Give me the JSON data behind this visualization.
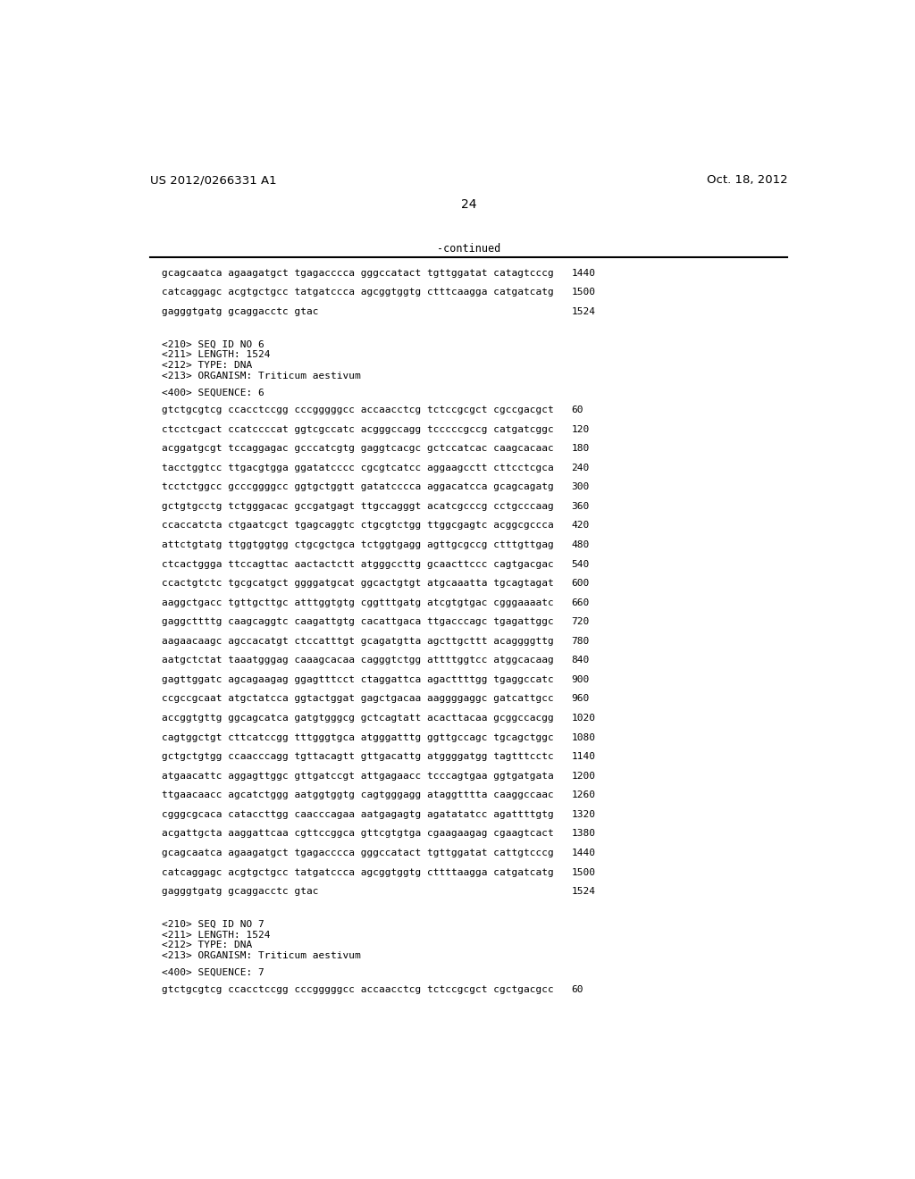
{
  "header_left": "US 2012/0266331 A1",
  "header_right": "Oct. 18, 2012",
  "page_number": "24",
  "continued_label": "-continued",
  "top_lines": [
    {
      "seq": "gcagcaatca agaagatgct tgagacccca gggccatact tgttggatat catagtcccg",
      "num": "1440"
    },
    {
      "seq": "catcaggagc acgtgctgcc tatgatccca agcggtggtg ctttcaagga catgatcatg",
      "num": "1500"
    },
    {
      "seq": "gagggtgatg gcaggacctc gtac",
      "num": "1524"
    }
  ],
  "meta_block_1": [
    "<210> SEQ ID NO 6",
    "<211> LENGTH: 1524",
    "<212> TYPE: DNA",
    "<213> ORGANISM: Triticum aestivum"
  ],
  "seq_label_1": "<400> SEQUENCE: 6",
  "seq_lines_1": [
    {
      "seq": "gtctgcgtcg ccacctccgg cccgggggcc accaacctcg tctccgcgct cgccgacgct",
      "num": "60"
    },
    {
      "seq": "ctcctcgact ccatccccat ggtcgccatc acgggccagg tcccccgccg catgatcggc",
      "num": "120"
    },
    {
      "seq": "acggatgcgt tccaggagac gcccatcgtg gaggtcacgc gctccatcac caagcacaac",
      "num": "180"
    },
    {
      "seq": "tacctggtcc ttgacgtgga ggatatcccc cgcgtcatcc aggaagcctt cttcctcgca",
      "num": "240"
    },
    {
      "seq": "tcctctggcc gcccggggcc ggtgctggtt gatatcccca aggacatcca gcagcagatg",
      "num": "300"
    },
    {
      "seq": "gctgtgcctg tctgggacac gccgatgagt ttgccagggt acatcgcccg cctgcccaag",
      "num": "360"
    },
    {
      "seq": "ccaccatcta ctgaatcgct tgagcaggtc ctgcgtctgg ttggcgagtc acggcgccca",
      "num": "420"
    },
    {
      "seq": "attctgtatg ttggtggtgg ctgcgctgca tctggtgagg agttgcgccg ctttgttgag",
      "num": "480"
    },
    {
      "seq": "ctcactggga ttccagttac aactactctt atgggccttg gcaacttccc cagtgacgac",
      "num": "540"
    },
    {
      "seq": "ccactgtctc tgcgcatgct ggggatgcat ggcactgtgt atgcaaatta tgcagtagat",
      "num": "600"
    },
    {
      "seq": "aaggctgacc tgttgcttgc atttggtgtg cggtttgatg atcgtgtgac cgggaaaatc",
      "num": "660"
    },
    {
      "seq": "gaggcttttg caagcaggtc caagattgtg cacattgaca ttgacccagc tgagattggc",
      "num": "720"
    },
    {
      "seq": "aagaacaagc agccacatgt ctccatttgt gcagatgtta agcttgcttt acaggggttg",
      "num": "780"
    },
    {
      "seq": "aatgctctat taaatgggag caaagcacaa cagggtctgg attttggtcc atggcacaag",
      "num": "840"
    },
    {
      "seq": "gagttggatc agcagaagag ggagtttcct ctaggattca agacttttgg tgaggccatc",
      "num": "900"
    },
    {
      "seq": "ccgccgcaat atgctatcca ggtactggat gagctgacaa aaggggaggc gatcattgcc",
      "num": "960"
    },
    {
      "seq": "accggtgttg ggcagcatca gatgtgggcg gctcagtatt acacttacaa gcggccacgg",
      "num": "1020"
    },
    {
      "seq": "cagtggctgt cttcatccgg tttgggtgca atgggatttg ggttgccagc tgcagctggc",
      "num": "1080"
    },
    {
      "seq": "gctgctgtgg ccaacccagg tgttacagtt gttgacattg atggggatgg tagtttcctc",
      "num": "1140"
    },
    {
      "seq": "atgaacattc aggagttggc gttgatccgt attgagaacc tcccagtgaa ggtgatgata",
      "num": "1200"
    },
    {
      "seq": "ttgaacaacc agcatctggg aatggtggtg cagtgggagg ataggtttta caaggccaac",
      "num": "1260"
    },
    {
      "seq": "cgggcgcaca cataccttgg caacccagaa aatgagagtg agatatatcc agattttgtg",
      "num": "1320"
    },
    {
      "seq": "acgattgcta aaggattcaa cgttccggca gttcgtgtga cgaagaagag cgaagtcact",
      "num": "1380"
    },
    {
      "seq": "gcagcaatca agaagatgct tgagacccca gggccatact tgttggatat cattgtcccg",
      "num": "1440"
    },
    {
      "seq": "catcaggagc acgtgctgcc tatgatccca agcggtggtg cttttaagga catgatcatg",
      "num": "1500"
    },
    {
      "seq": "gagggtgatg gcaggacctc gtac",
      "num": "1524"
    }
  ],
  "meta_block_2": [
    "<210> SEQ ID NO 7",
    "<211> LENGTH: 1524",
    "<212> TYPE: DNA",
    "<213> ORGANISM: Triticum aestivum"
  ],
  "seq_label_2": "<400> SEQUENCE: 7",
  "last_line": {
    "seq": "gtctgcgtcg ccacctccgg cccgggggcc accaacctcg tctccgcgct cgctgacgcc",
    "num": "60"
  },
  "bg_color": "#ffffff",
  "text_color": "#000000"
}
